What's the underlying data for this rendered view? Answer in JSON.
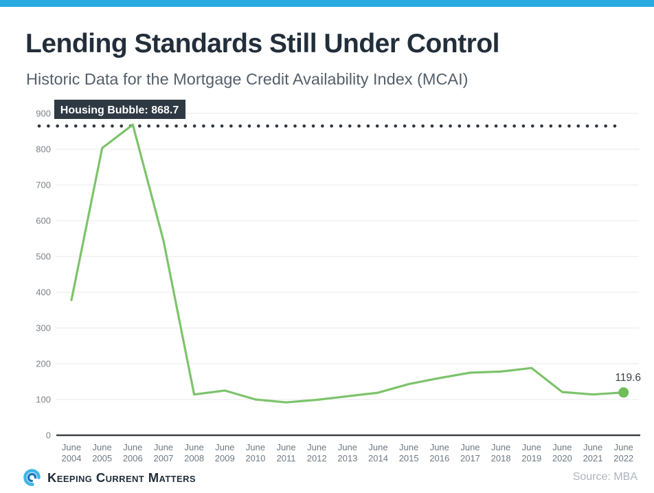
{
  "page": {
    "title": "Lending Standards Still Under Control",
    "subtitle": "Historic Data for the Mortgage Credit Availability Index (MCAI)"
  },
  "chart_data": {
    "type": "line",
    "title": "Historic Data for the Mortgage Credit Availability Index (MCAI)",
    "categories": [
      "June 2004",
      "June 2005",
      "June 2006",
      "June 2007",
      "June 2008",
      "June 2009",
      "June 2010",
      "June 2011",
      "June 2012",
      "June 2013",
      "June 2014",
      "June 2015",
      "June 2016",
      "June 2017",
      "June 2018",
      "June 2019",
      "June 2020",
      "June 2021",
      "June 2022"
    ],
    "series": [
      {
        "name": "MCAI",
        "values": [
          378,
          803,
          868.7,
          545,
          114,
          125,
          100,
          92,
          99,
          109,
          119,
          143,
          160,
          175,
          178,
          188,
          121,
          114,
          119.6
        ]
      }
    ],
    "ylim": [
      0,
      900
    ],
    "y_ticks": [
      0,
      100,
      200,
      300,
      400,
      500,
      600,
      700,
      800,
      900
    ],
    "grid": true,
    "legend": "none",
    "annotations": {
      "threshold": {
        "label": "Housing Bubble: 868.7",
        "value": 868.7,
        "style": "dotted"
      },
      "last_point_label": "119.6"
    },
    "colors": {
      "line": "#7cc36b",
      "end_dot": "#6fbe59",
      "grid": "#eaeaea",
      "axis": "#3b4045",
      "y_tick_text": "#7d8288",
      "x_tick_text": "#6e7983",
      "threshold_dots": "#31373e",
      "bubble_bg": "#2e3943",
      "bubble_text": "#ffffff",
      "end_label_text": "#3a4046"
    }
  },
  "footer": {
    "brand": "Keeping Current Matters",
    "source": "Source: MBA"
  },
  "theme": {
    "topbar_color": "#29abe2",
    "title_color": "#222e3a",
    "subtitle_color": "#545f6a"
  }
}
